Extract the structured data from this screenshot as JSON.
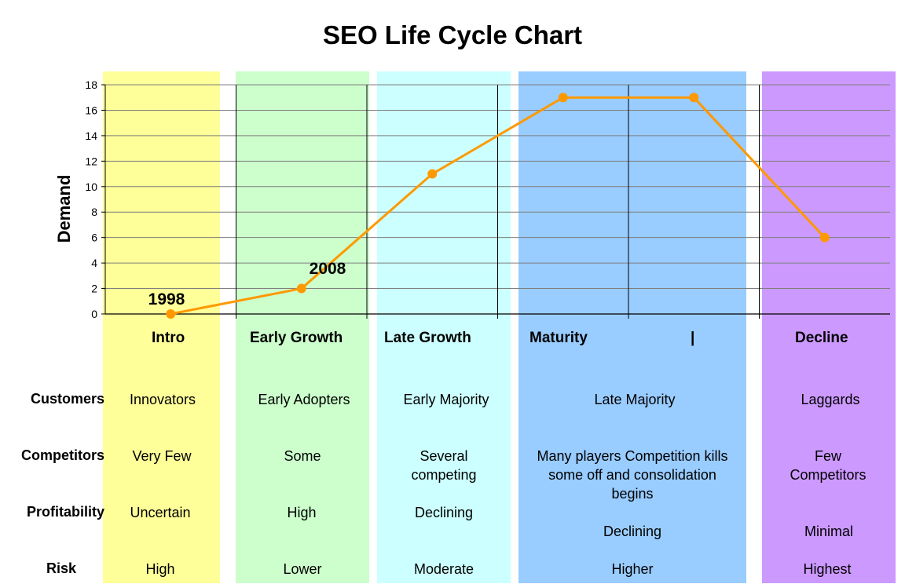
{
  "chart_data": {
    "type": "line",
    "title": "SEO Life Cycle Chart",
    "ylabel": "Demand",
    "ylim": [
      0,
      18
    ],
    "yticks": [
      0,
      2,
      4,
      6,
      8,
      10,
      12,
      14,
      16,
      18
    ],
    "grid": true,
    "series": [
      {
        "values": [
          0,
          2,
          11,
          17,
          17,
          6
        ],
        "color": "#ff9900"
      }
    ],
    "point_labels": [
      "1998",
      "2008"
    ],
    "stages": [
      "Intro",
      "Early Growth",
      "Late Growth",
      "Maturity",
      "|",
      "Decline"
    ],
    "band_colors": [
      "#ffff99",
      "#ccffcc",
      "#ccffff",
      "#99ccff",
      "#cc99ff"
    ]
  },
  "table": {
    "row_labels": [
      "Customers",
      "Competitors",
      "Profitability",
      "Risk"
    ],
    "customers": [
      "Innovators",
      "Early Adopters",
      "Early Majority",
      "Late Majority",
      "Laggards"
    ],
    "competitors": [
      "Very Few",
      "Some",
      "Several competing",
      "Many players Competition kills some off and consolidation begins",
      "Few Competitors"
    ],
    "profitability": [
      "Uncertain",
      "High",
      "Declining",
      "Declining",
      "Minimal"
    ],
    "risk": [
      "High",
      "Lower",
      "Moderate",
      "Higher",
      "Highest"
    ]
  }
}
